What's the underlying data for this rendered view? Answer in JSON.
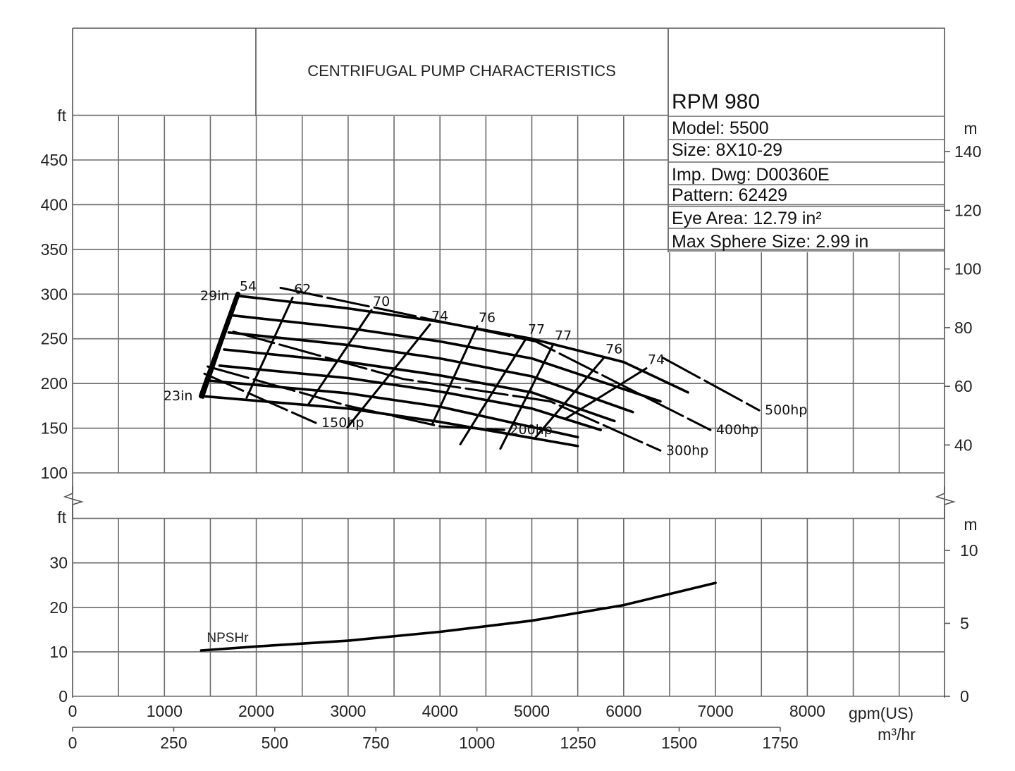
{
  "chart_data": {
    "type": "line",
    "title": "CENTRIFUGAL PUMP CHARACTERISTICS",
    "info": {
      "rpm": "RPM  980",
      "model": "Model: 5500",
      "size": "Size: 8X10-29",
      "imp_dwg": "Imp. Dwg: D00360E",
      "pattern": "Pattern: 62429",
      "eye_area": "Eye Area: 12.79 in²",
      "max_sphere": "Max Sphere Size: 2.99 in"
    },
    "x_axis": {
      "label": "gpm(US)",
      "range": [
        0,
        9500
      ],
      "ticks": [
        0,
        1000,
        2000,
        3000,
        4000,
        5000,
        6000,
        7000,
        8000
      ],
      "grid_step": 500
    },
    "x2_axis": {
      "label": "m³/hr",
      "ticks": [
        0,
        250,
        500,
        750,
        1000,
        1250,
        1500,
        1750
      ]
    },
    "head_axis": {
      "label": "ft",
      "range": [
        100,
        500
      ],
      "ticks": [
        100,
        150,
        200,
        250,
        300,
        350,
        400,
        450
      ]
    },
    "head_axis_right": {
      "label": "m",
      "ticks": [
        40,
        60,
        80,
        100,
        120,
        140
      ]
    },
    "npsh_axis": {
      "label": "ft",
      "range": [
        0,
        40
      ],
      "ticks": [
        0,
        10,
        20,
        30
      ]
    },
    "npsh_axis_right": {
      "label": "m",
      "ticks": [
        0,
        5,
        10
      ]
    },
    "impeller_curves": [
      {
        "label": "29in",
        "points": [
          [
            1800,
            298
          ],
          [
            3000,
            284
          ],
          [
            4000,
            269
          ],
          [
            5000,
            250
          ],
          [
            6000,
            224
          ],
          [
            6700,
            190
          ]
        ]
      },
      {
        "label": "",
        "points": [
          [
            1750,
            276
          ],
          [
            3000,
            262
          ],
          [
            4000,
            247
          ],
          [
            5000,
            228
          ],
          [
            6400,
            180
          ]
        ]
      },
      {
        "label": "",
        "points": [
          [
            1700,
            257
          ],
          [
            3000,
            243
          ],
          [
            4000,
            228
          ],
          [
            5000,
            208
          ],
          [
            6100,
            168
          ]
        ]
      },
      {
        "label": "",
        "points": [
          [
            1650,
            238
          ],
          [
            3000,
            224
          ],
          [
            4000,
            209
          ],
          [
            5000,
            190
          ],
          [
            5900,
            158
          ]
        ]
      },
      {
        "label": "",
        "points": [
          [
            1600,
            220
          ],
          [
            3000,
            206
          ],
          [
            4000,
            191
          ],
          [
            5000,
            172
          ],
          [
            5750,
            148
          ]
        ]
      },
      {
        "label": "",
        "points": [
          [
            1500,
            203
          ],
          [
            3000,
            189
          ],
          [
            4000,
            174
          ],
          [
            5500,
            140
          ]
        ]
      },
      {
        "label": "23in",
        "points": [
          [
            1400,
            186
          ],
          [
            3000,
            172
          ],
          [
            4000,
            157
          ],
          [
            5500,
            130
          ]
        ]
      }
    ],
    "efficiency_lines": [
      {
        "label": "54",
        "points": [
          [
            1803,
            299
          ],
          [
            1420,
            184
          ]
        ]
      },
      {
        "label": "62",
        "points": [
          [
            2395,
            296
          ],
          [
            1895,
            184
          ]
        ]
      },
      {
        "label": "70",
        "points": [
          [
            3254,
            282
          ],
          [
            2563,
            176
          ]
        ]
      },
      {
        "label": "74",
        "points": [
          [
            3891,
            266
          ],
          [
            2993,
            151
          ]
        ]
      },
      {
        "label": "76",
        "points": [
          [
            4405,
            264
          ],
          [
            3913,
            154
          ]
        ]
      },
      {
        "label": "77",
        "points": [
          [
            4942,
            251
          ],
          [
            4221,
            132
          ]
        ]
      },
      {
        "label": "77",
        "points": [
          [
            5234,
            244
          ],
          [
            4658,
            127
          ]
        ]
      },
      {
        "label": "76",
        "points": [
          [
            5787,
            229
          ],
          [
            5042,
            140
          ]
        ]
      },
      {
        "label": "74",
        "points": [
          [
            6247,
            217
          ],
          [
            5372,
            161
          ]
        ]
      }
    ],
    "power_lines": [
      {
        "label": "150hp",
        "points": [
          [
            1435,
            211
          ],
          [
            2648,
            156
          ]
        ]
      },
      {
        "label": "200hp",
        "points": [
          [
            1470,
            219
          ],
          [
            3000,
            175
          ],
          [
            4000,
            152
          ],
          [
            4700,
            148
          ]
        ]
      },
      {
        "label": "300hp",
        "points": [
          [
            1750,
            258
          ],
          [
            3600,
            205
          ],
          [
            5200,
            180
          ],
          [
            6400,
            125
          ]
        ]
      },
      {
        "label": "400hp",
        "points": [
          [
            2264,
            307
          ],
          [
            5042,
            247
          ],
          [
            6945,
            148
          ]
        ]
      },
      {
        "label": "500hp",
        "points": [
          [
            6424,
            229
          ],
          [
            7475,
            170
          ]
        ]
      }
    ],
    "npshr": {
      "label": "NPSHr",
      "points": [
        [
          1400,
          10.3
        ],
        [
          2000,
          11.2
        ],
        [
          3000,
          12.5
        ],
        [
          4000,
          14.5
        ],
        [
          5000,
          17
        ],
        [
          6000,
          20.5
        ],
        [
          7000,
          25.5
        ]
      ]
    }
  }
}
